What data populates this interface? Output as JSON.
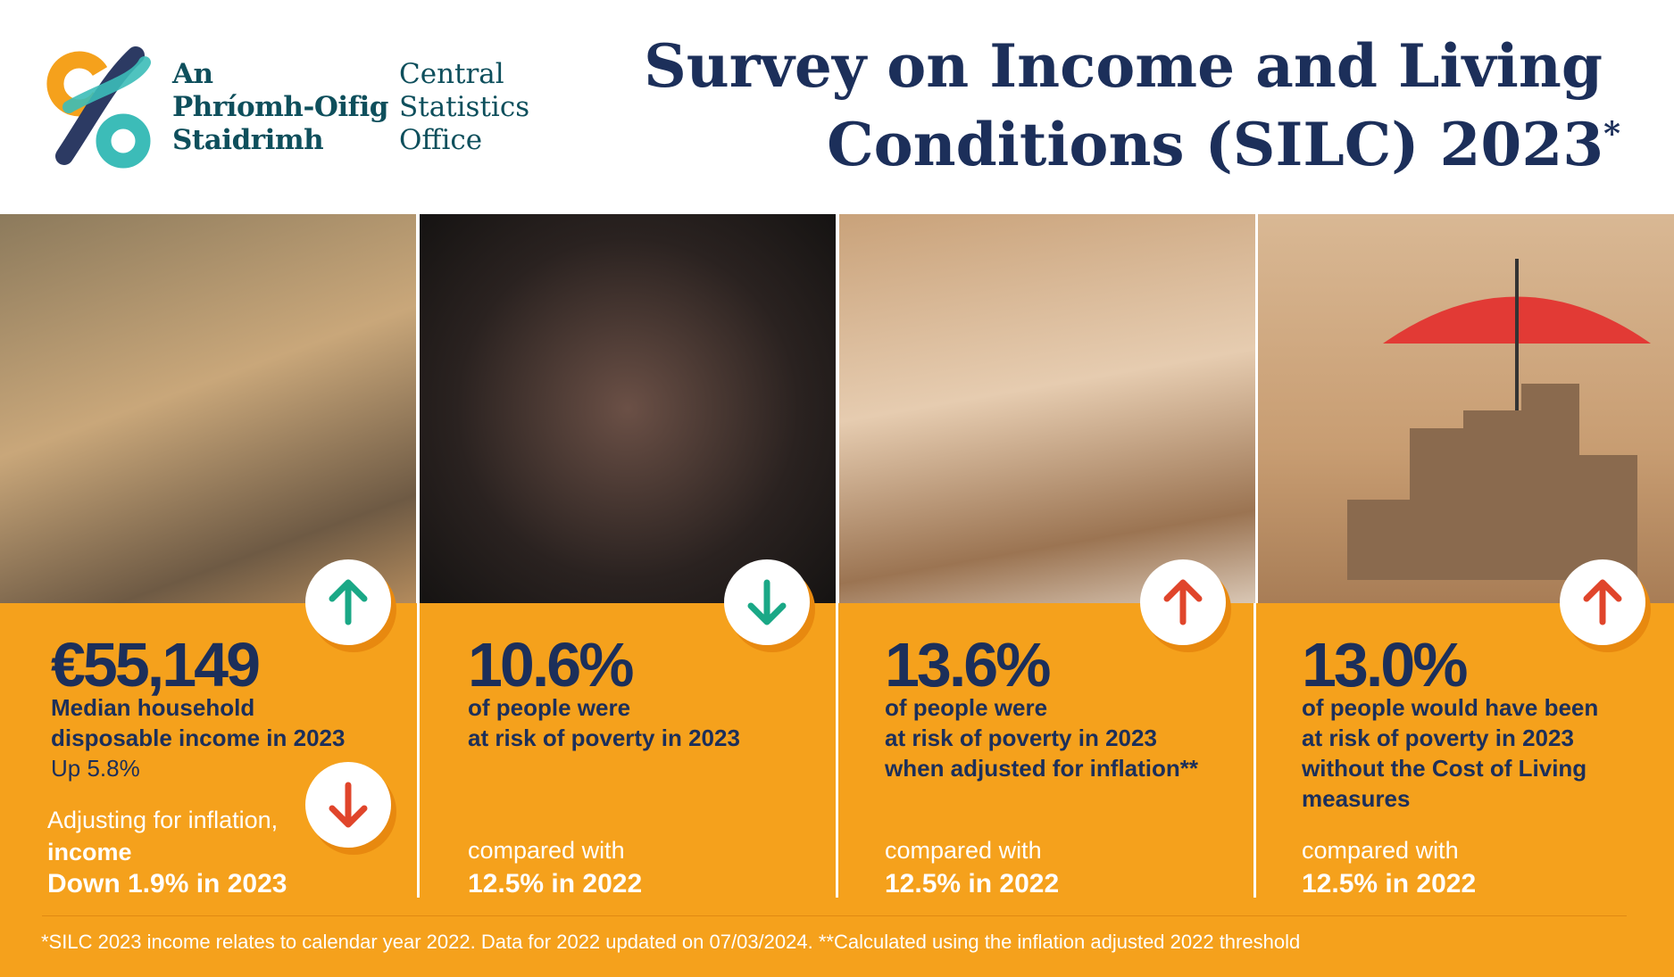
{
  "header": {
    "logo_irish": [
      "An",
      "Phríomh-Oifig",
      "Staidrimh"
    ],
    "logo_english": [
      "Central",
      "Statistics",
      "Office"
    ],
    "title": [
      "Survey on Income and Living",
      "Conditions (SILC) 2023"
    ],
    "title_mark": "*"
  },
  "panels": [
    {
      "headline": "€55,149",
      "lines": [
        "Median household",
        "disposable income in 2023",
        "Up 5.8%"
      ],
      "extra": [
        "Adjusting for inflation,",
        "income",
        "Down 1.9% in 2023"
      ]
    },
    {
      "headline": "10.6%",
      "lines": [
        "of people were",
        "at risk of poverty in 2023"
      ],
      "compared": [
        "compared with",
        "12.5% in 2022"
      ]
    },
    {
      "headline": "13.6%",
      "lines": [
        "of people were",
        "at risk of poverty in 2023",
        "when adjusted for inflation**"
      ],
      "compared": [
        "compared with",
        "12.5% in 2022"
      ]
    },
    {
      "headline": "13.0%",
      "lines": [
        "of people would have been",
        "at risk of poverty in 2023"
      ],
      "bold_word": "without",
      "line_rest": " the Cost of Living",
      "last_line": "measures",
      "compared": [
        "compared with",
        "12.5% in 2022"
      ]
    }
  ],
  "footnote": "*SILC 2023 income relates to calendar year 2022. Data for 2022 updated on 07/03/2024. **Calculated using the inflation adjusted 2022 threshold"
}
